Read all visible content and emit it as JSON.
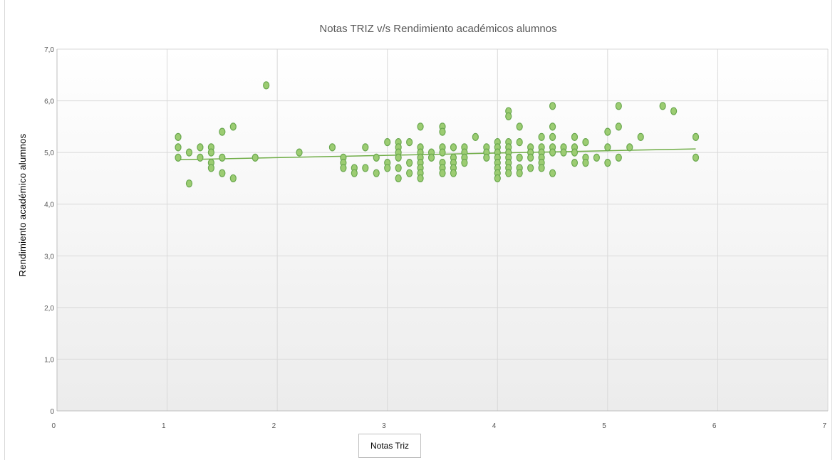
{
  "chart_data": {
    "type": "scatter",
    "title": "Notas TRIZ v/s Rendimiento académicos alumnos",
    "xlabel": "Notas Triz",
    "ylabel": "Rendimiento académico alumnos",
    "xlim": [
      0,
      7
    ],
    "ylim": [
      0,
      7
    ],
    "x_ticks": [
      0,
      1,
      2,
      3,
      4,
      5,
      6,
      7
    ],
    "y_ticks": [
      0,
      1,
      2,
      3,
      4,
      5,
      6,
      7
    ],
    "x_tick_labels": [
      "0",
      "1",
      "2",
      "3",
      "4",
      "5",
      "6",
      "7"
    ],
    "y_tick_labels": [
      "0",
      "1,0",
      "2,0",
      "3,0",
      "4,0",
      "5,0",
      "6,0",
      "7,0"
    ],
    "grid": true,
    "colors": {
      "marker_fill": "#9ccc72",
      "marker_stroke": "#6aa84f",
      "trendline": "#70ad47",
      "grid": "#d9d9d9"
    },
    "series": [
      {
        "points": [
          [
            1.1,
            5.3
          ],
          [
            1.1,
            5.1
          ],
          [
            1.1,
            4.9
          ],
          [
            1.2,
            5.0
          ],
          [
            1.2,
            4.4
          ],
          [
            1.3,
            5.1
          ],
          [
            1.3,
            4.9
          ],
          [
            1.4,
            5.1
          ],
          [
            1.4,
            5.0
          ],
          [
            1.4,
            4.8
          ],
          [
            1.4,
            4.7
          ],
          [
            1.5,
            5.4
          ],
          [
            1.5,
            4.9
          ],
          [
            1.5,
            4.6
          ],
          [
            1.6,
            5.5
          ],
          [
            1.6,
            4.5
          ],
          [
            1.8,
            4.9
          ],
          [
            1.9,
            6.3
          ],
          [
            2.2,
            5.0
          ],
          [
            2.5,
            5.1
          ],
          [
            2.6,
            4.9
          ],
          [
            2.6,
            4.8
          ],
          [
            2.6,
            4.7
          ],
          [
            2.7,
            4.7
          ],
          [
            2.7,
            4.6
          ],
          [
            2.8,
            5.1
          ],
          [
            2.8,
            4.7
          ],
          [
            2.9,
            4.9
          ],
          [
            2.9,
            4.6
          ],
          [
            3.0,
            5.2
          ],
          [
            3.0,
            4.8
          ],
          [
            3.0,
            4.7
          ],
          [
            3.1,
            5.2
          ],
          [
            3.1,
            5.1
          ],
          [
            3.1,
            5.0
          ],
          [
            3.1,
            4.9
          ],
          [
            3.1,
            4.7
          ],
          [
            3.1,
            4.5
          ],
          [
            3.2,
            5.2
          ],
          [
            3.2,
            4.8
          ],
          [
            3.2,
            4.6
          ],
          [
            3.3,
            5.5
          ],
          [
            3.3,
            5.1
          ],
          [
            3.3,
            5.0
          ],
          [
            3.3,
            4.9
          ],
          [
            3.3,
            4.8
          ],
          [
            3.3,
            4.7
          ],
          [
            3.3,
            4.6
          ],
          [
            3.3,
            4.5
          ],
          [
            3.4,
            5.0
          ],
          [
            3.4,
            4.9
          ],
          [
            3.5,
            5.5
          ],
          [
            3.5,
            5.4
          ],
          [
            3.5,
            5.1
          ],
          [
            3.5,
            5.0
          ],
          [
            3.5,
            4.8
          ],
          [
            3.5,
            4.7
          ],
          [
            3.5,
            4.6
          ],
          [
            3.6,
            5.1
          ],
          [
            3.6,
            4.9
          ],
          [
            3.6,
            4.8
          ],
          [
            3.6,
            4.7
          ],
          [
            3.6,
            4.6
          ],
          [
            3.7,
            5.1
          ],
          [
            3.7,
            5.0
          ],
          [
            3.7,
            4.9
          ],
          [
            3.7,
            4.8
          ],
          [
            3.8,
            5.3
          ],
          [
            3.9,
            5.1
          ],
          [
            3.9,
            5.0
          ],
          [
            3.9,
            4.9
          ],
          [
            4.0,
            5.2
          ],
          [
            4.0,
            5.1
          ],
          [
            4.0,
            5.0
          ],
          [
            4.0,
            4.9
          ],
          [
            4.0,
            4.8
          ],
          [
            4.0,
            4.7
          ],
          [
            4.0,
            4.6
          ],
          [
            4.0,
            4.5
          ],
          [
            4.1,
            5.8
          ],
          [
            4.1,
            5.7
          ],
          [
            4.1,
            5.2
          ],
          [
            4.1,
            5.1
          ],
          [
            4.1,
            5.0
          ],
          [
            4.1,
            4.9
          ],
          [
            4.1,
            4.8
          ],
          [
            4.1,
            4.7
          ],
          [
            4.1,
            4.6
          ],
          [
            4.2,
            5.5
          ],
          [
            4.2,
            5.2
          ],
          [
            4.2,
            4.9
          ],
          [
            4.2,
            4.7
          ],
          [
            4.2,
            4.6
          ],
          [
            4.3,
            5.1
          ],
          [
            4.3,
            5.0
          ],
          [
            4.3,
            4.9
          ],
          [
            4.3,
            4.7
          ],
          [
            4.4,
            5.3
          ],
          [
            4.4,
            5.1
          ],
          [
            4.4,
            5.0
          ],
          [
            4.4,
            4.9
          ],
          [
            4.4,
            4.8
          ],
          [
            4.4,
            4.7
          ],
          [
            4.5,
            5.9
          ],
          [
            4.5,
            5.5
          ],
          [
            4.5,
            5.3
          ],
          [
            4.5,
            5.1
          ],
          [
            4.5,
            5.0
          ],
          [
            4.5,
            4.6
          ],
          [
            4.6,
            5.1
          ],
          [
            4.6,
            5.0
          ],
          [
            4.7,
            5.3
          ],
          [
            4.7,
            5.1
          ],
          [
            4.7,
            5.0
          ],
          [
            4.7,
            4.8
          ],
          [
            4.8,
            5.2
          ],
          [
            4.8,
            4.9
          ],
          [
            4.8,
            4.8
          ],
          [
            4.9,
            4.9
          ],
          [
            5.0,
            5.4
          ],
          [
            5.0,
            5.1
          ],
          [
            5.0,
            4.8
          ],
          [
            5.1,
            5.9
          ],
          [
            5.1,
            5.5
          ],
          [
            5.1,
            4.9
          ],
          [
            5.2,
            5.1
          ],
          [
            5.3,
            5.3
          ],
          [
            5.5,
            5.9
          ],
          [
            5.6,
            5.8
          ],
          [
            5.8,
            5.3
          ],
          [
            5.8,
            4.9
          ]
        ]
      }
    ],
    "trendline": {
      "type": "linear",
      "x": [
        1.1,
        5.8
      ],
      "y": [
        4.86,
        5.07
      ]
    }
  }
}
